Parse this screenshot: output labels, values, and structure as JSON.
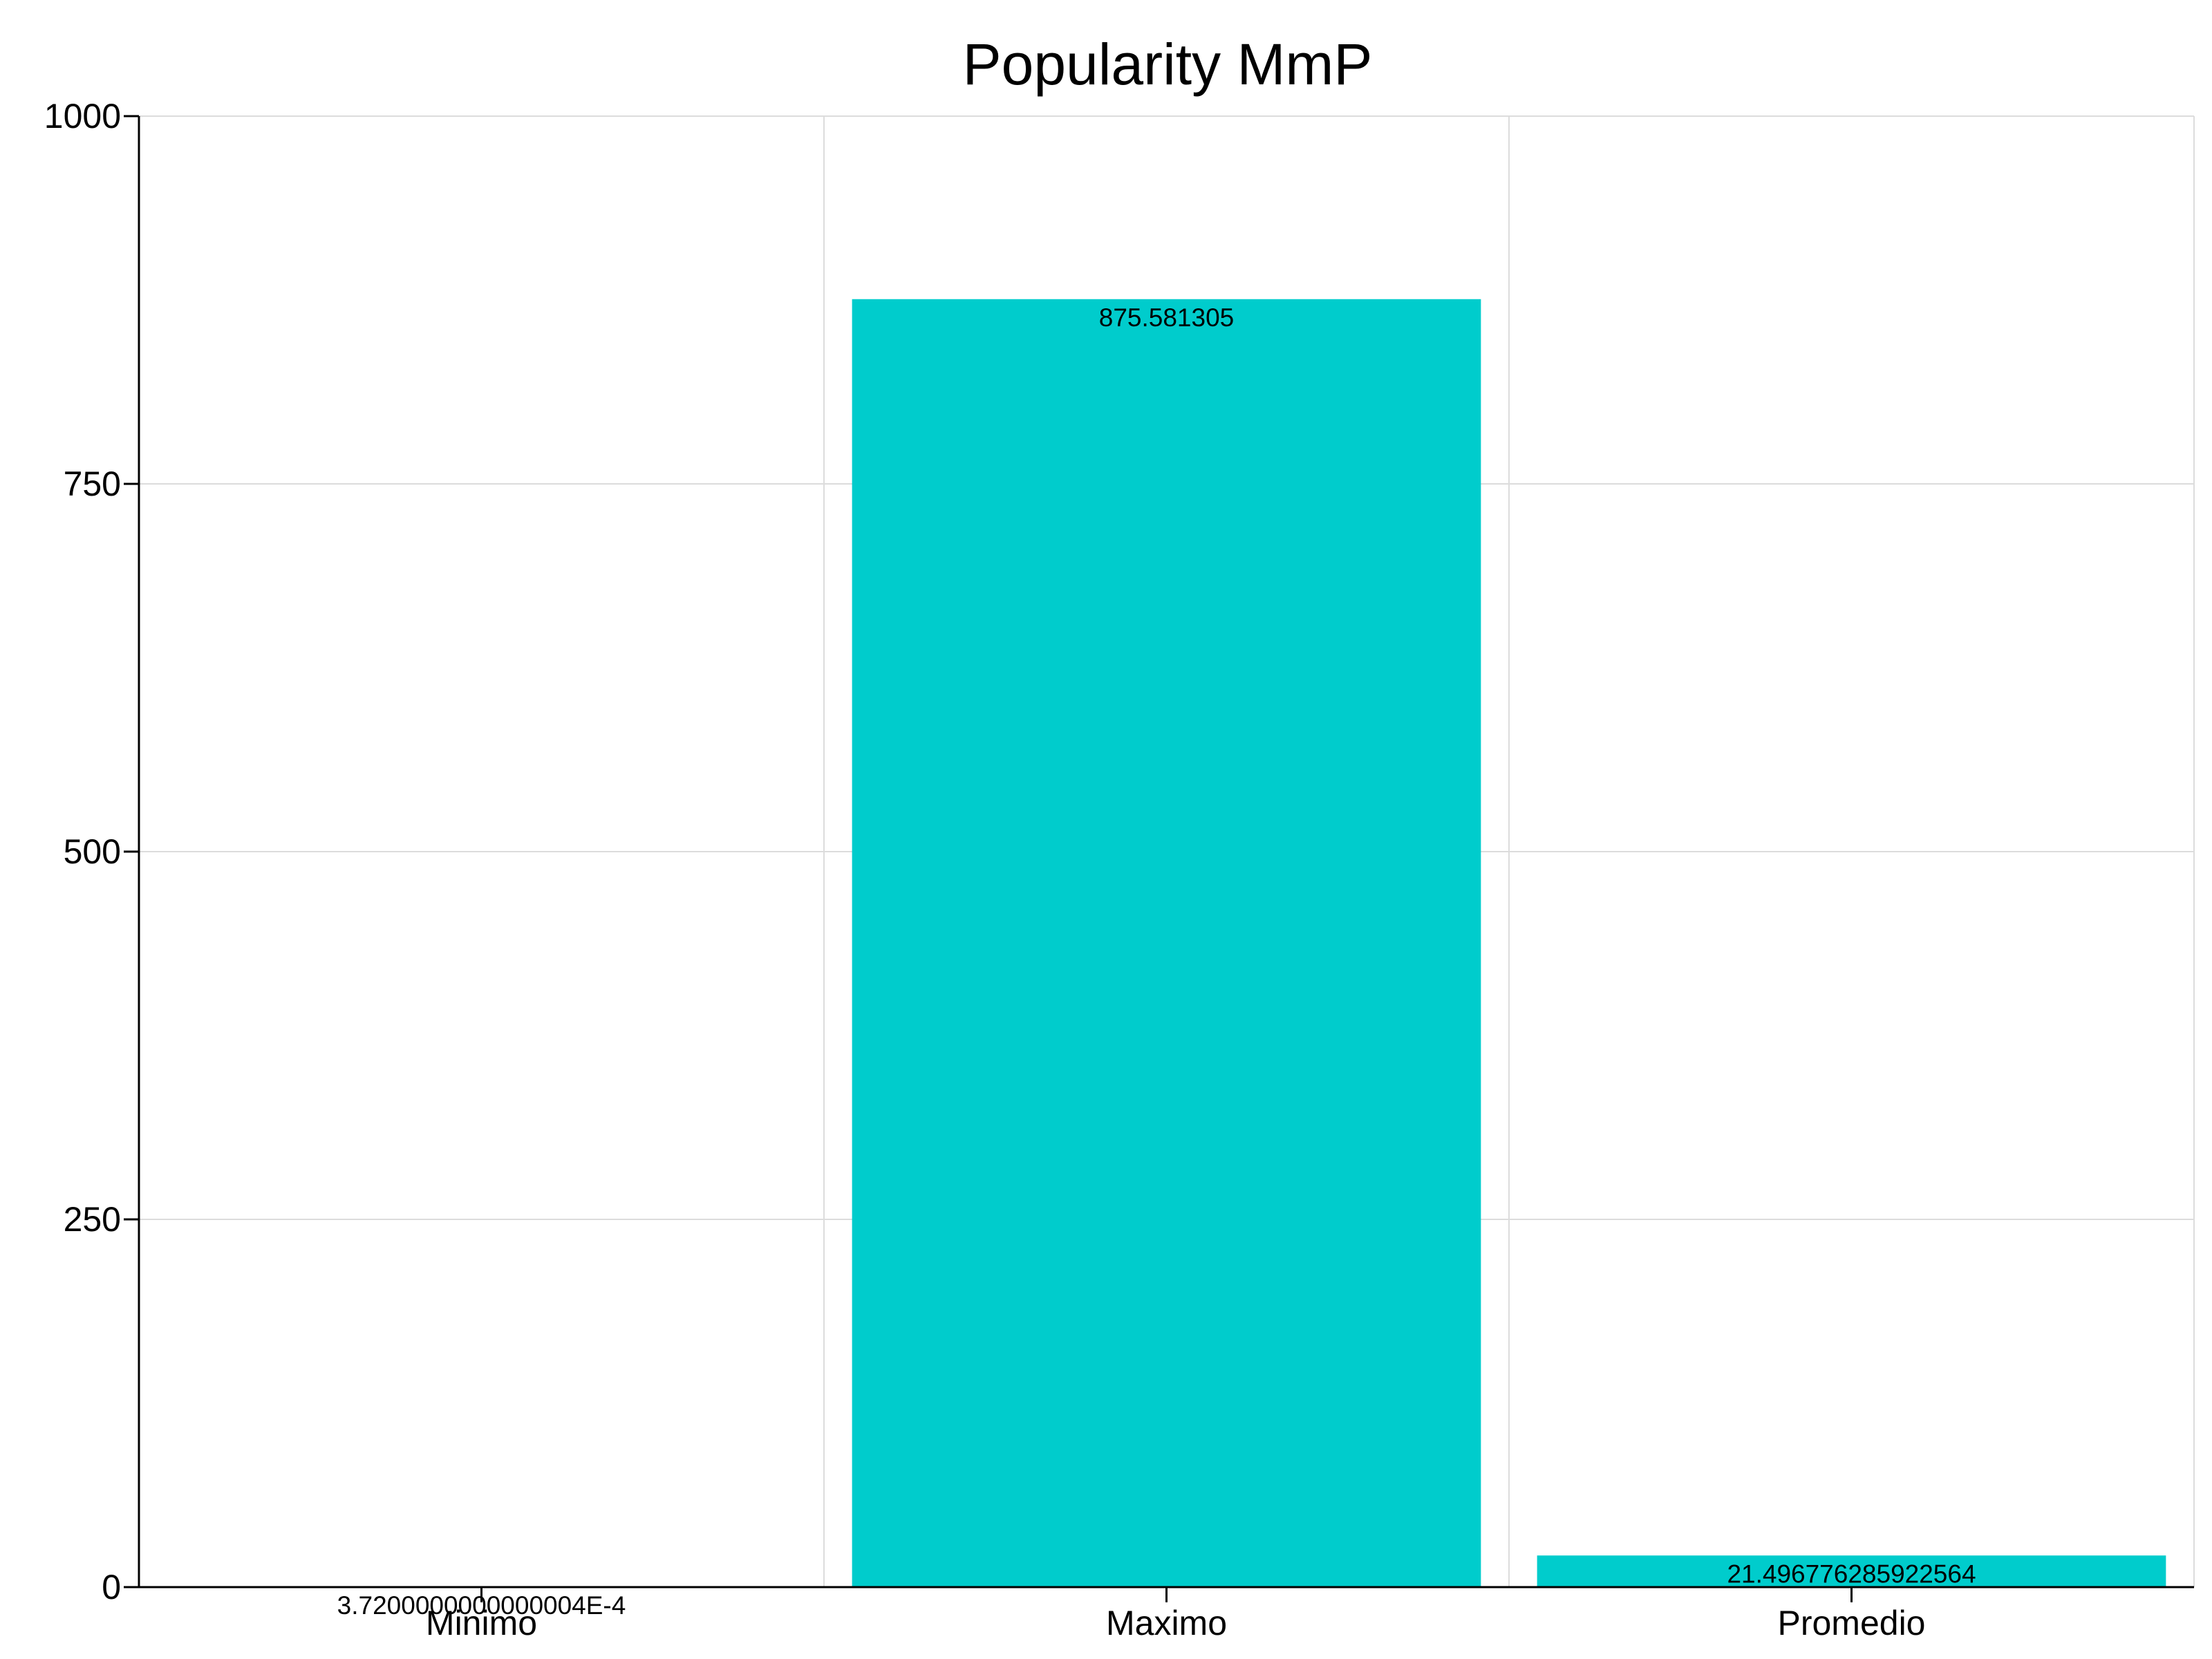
{
  "chart_data": {
    "type": "bar",
    "title": "Popularity MmP",
    "xlabel": "",
    "ylabel": "",
    "categories": [
      "Minimo",
      "Maximo",
      "Promedio"
    ],
    "values": [
      0.000372,
      875.581305,
      21.496776285922564
    ],
    "data_labels": [
      "3.7200000000000004E-4",
      "875.581305",
      "21.496776285922564"
    ],
    "ylim": [
      0,
      1000
    ],
    "yticks": [
      0,
      250,
      500,
      750,
      1000
    ],
    "ytick_labels": [
      "0",
      "250",
      "500",
      "750",
      "1000"
    ],
    "bar_color": "#00CCCC",
    "grid": true,
    "legend": "none"
  }
}
